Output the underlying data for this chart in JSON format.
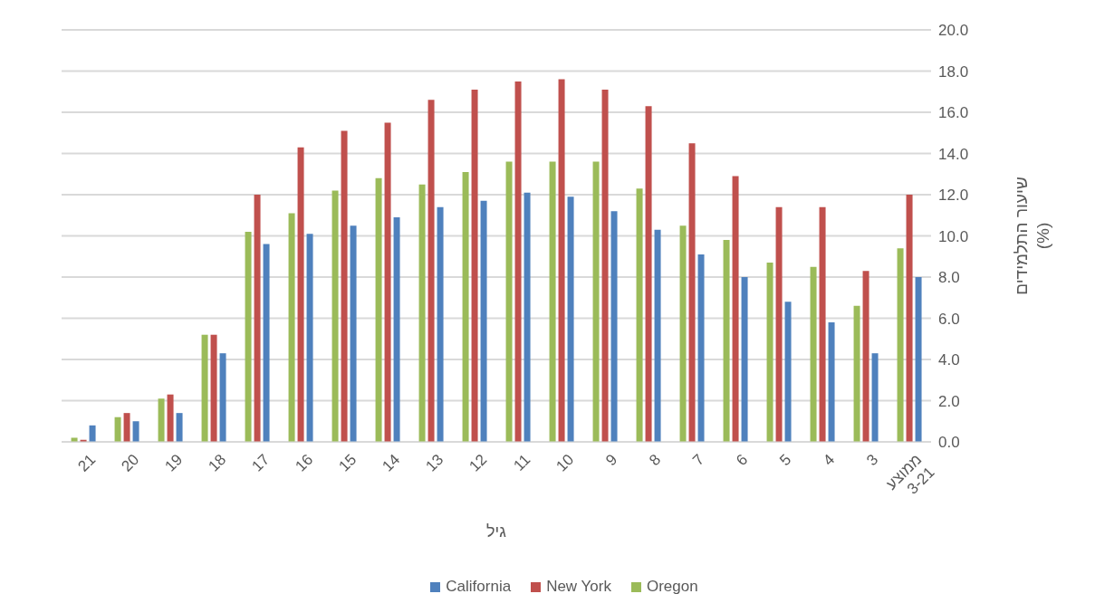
{
  "chart_data": {
    "type": "bar",
    "xlabel": "גיל",
    "ylabel": "שיעור התלמידים (%)",
    "categories": [
      "21",
      "20",
      "19",
      "18",
      "17",
      "16",
      "15",
      "14",
      "13",
      "12",
      "11",
      "10",
      "9",
      "8",
      "7",
      "6",
      "5",
      "4",
      "3",
      "ממוצע 3-21"
    ],
    "series": [
      {
        "name": "Oregon",
        "color": "#9bbb59",
        "values": [
          0.2,
          1.2,
          2.1,
          5.2,
          10.2,
          11.1,
          12.2,
          12.8,
          12.5,
          13.1,
          13.6,
          13.6,
          13.6,
          12.3,
          10.5,
          9.8,
          8.7,
          8.5,
          6.6,
          9.4
        ]
      },
      {
        "name": "New York",
        "color": "#c0504d",
        "values": [
          0.1,
          1.4,
          2.3,
          5.2,
          12.0,
          14.3,
          15.1,
          15.5,
          16.6,
          17.1,
          17.5,
          17.6,
          17.1,
          16.3,
          14.5,
          12.9,
          11.4,
          11.4,
          8.3,
          12.0
        ]
      },
      {
        "name": "California",
        "color": "#4f81bd",
        "values": [
          0.8,
          1.0,
          1.4,
          4.3,
          9.6,
          10.1,
          10.5,
          10.9,
          11.4,
          11.7,
          12.1,
          11.9,
          11.2,
          10.3,
          9.1,
          8.0,
          6.8,
          5.8,
          4.3,
          8.0
        ]
      }
    ],
    "ylim": [
      0,
      20
    ],
    "yticks": [
      {
        "value": 0,
        "label": "0.0"
      },
      {
        "value": 2,
        "label": "2.0"
      },
      {
        "value": 4,
        "label": "4.0"
      },
      {
        "value": 6,
        "label": "6.0"
      },
      {
        "value": 8,
        "label": "8.0"
      },
      {
        "value": 10,
        "label": "10.0"
      },
      {
        "value": 12,
        "label": "12.0"
      },
      {
        "value": 14,
        "label": "14.0"
      },
      {
        "value": 16,
        "label": "16.0"
      },
      {
        "value": 18,
        "label": "18.0"
      },
      {
        "value": 20,
        "label": "20.0"
      }
    ],
    "grid": "y",
    "legend": "bottom"
  }
}
